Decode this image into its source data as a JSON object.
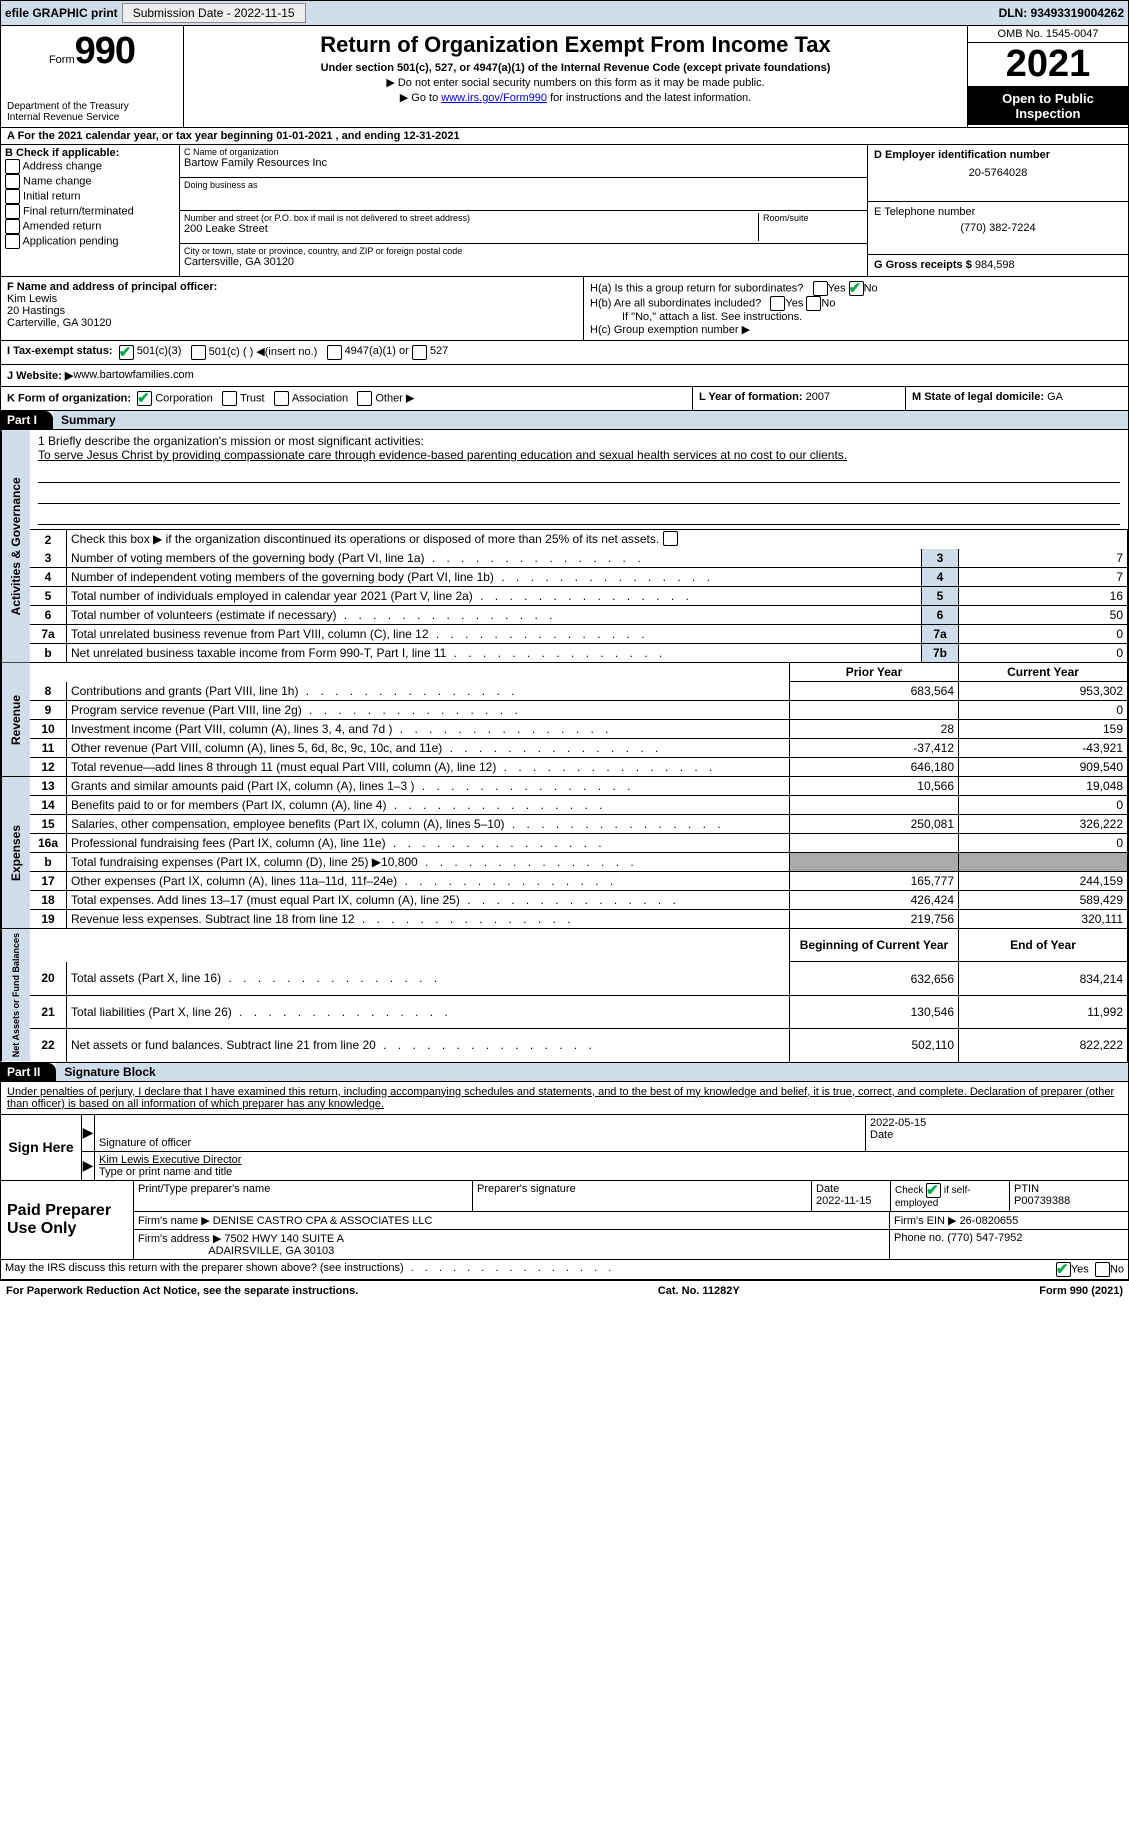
{
  "top": {
    "efile": "efile GRAPHIC print",
    "subdate_lbl": "Submission Date - 2022-11-15",
    "dln": "DLN: 93493319004262"
  },
  "hd": {
    "form_word": "Form",
    "form_num": "990",
    "title": "Return of Organization Exempt From Income Tax",
    "sub1": "Under section 501(c), 527, or 4947(a)(1) of the Internal Revenue Code (except private foundations)",
    "sub2": "▶ Do not enter social security numbers on this form as it may be made public.",
    "sub3_pre": "▶ Go to ",
    "sub3_link": "www.irs.gov/Form990",
    "sub3_post": " for instructions and the latest information.",
    "dept1": "Department of the Treasury",
    "dept2": "Internal Revenue Service",
    "omb": "OMB No. 1545-0047",
    "year": "2021",
    "open": "Open to Public Inspection"
  },
  "a": {
    "text": "A  For the 2021 calendar year, or tax year beginning 01-01-2021    , and ending 12-31-2021"
  },
  "b": {
    "hdr": "B Check if applicable:",
    "items": [
      "Address change",
      "Name change",
      "Initial return",
      "Final return/terminated",
      "Amended return",
      "Application pending"
    ]
  },
  "c": {
    "name_lbl": "C Name of organization",
    "name": "Bartow Family Resources Inc",
    "dba_lbl": "Doing business as",
    "street_lbl": "Number and street (or P.O. box if mail is not delivered to street address)",
    "room_lbl": "Room/suite",
    "street": "200 Leake Street",
    "city_lbl": "City or town, state or province, country, and ZIP or foreign postal code",
    "city": "Cartersville, GA  30120"
  },
  "d": {
    "lbl": "D Employer identification number",
    "val": "20-5764028"
  },
  "e": {
    "lbl": "E Telephone number",
    "val": "(770) 382-7224"
  },
  "g": {
    "lbl": "G Gross receipts $",
    "val": "984,598"
  },
  "f": {
    "lbl": "F  Name and address of principal officer:",
    "name": "Kim Lewis",
    "l2": "20 Hastings",
    "l3": "Carterville, GA  30120"
  },
  "h": {
    "a": "H(a)  Is this a group return for subordinates?",
    "a_yes": "Yes",
    "a_no": "No",
    "b": "H(b)  Are all subordinates included?",
    "b_yes": "Yes",
    "b_no": "No",
    "b_note": "If \"No,\" attach a list. See instructions.",
    "c": "H(c)  Group exemption number ▶"
  },
  "i": {
    "lbl": "I   Tax-exempt status:",
    "o1": "501(c)(3)",
    "o2": "501(c) (   ) ◀(insert no.)",
    "o3": "4947(a)(1) or",
    "o4": "527"
  },
  "j": {
    "lbl": "J   Website: ▶",
    "val": " www.bartowfamilies.com"
  },
  "k": {
    "lbl": "K Form of organization:",
    "o1": "Corporation",
    "o2": "Trust",
    "o3": "Association",
    "o4": "Other ▶"
  },
  "l": {
    "lbl": "L Year of formation:",
    "val": "2007"
  },
  "m": {
    "lbl": "M State of legal domicile:",
    "val": "GA"
  },
  "p1": {
    "part": "Part I",
    "title": "Summary"
  },
  "mission": {
    "pre": "1   Briefly describe the organization's mission or most significant activities:",
    "text": "To serve Jesus Christ by providing compassionate care through evidence-based parenting education and sexual health services at no cost to our clients."
  },
  "l2": "Check this box ▶       if the organization discontinued its operations or disposed of more than 25% of its net assets.",
  "sect": {
    "act": "Activities & Governance",
    "rev": "Revenue",
    "exp": "Expenses",
    "net": "Net Assets or Fund Balances"
  },
  "hdr2": {
    "py": "Prior Year",
    "cy": "Current Year",
    "bcy": "Beginning of Current Year",
    "ey": "End of Year"
  },
  "rows_act": [
    {
      "n": "3",
      "d": "Number of voting members of the governing body (Part VI, line 1a)",
      "lbl": "3",
      "v": "7"
    },
    {
      "n": "4",
      "d": "Number of independent voting members of the governing body (Part VI, line 1b)",
      "lbl": "4",
      "v": "7"
    },
    {
      "n": "5",
      "d": "Total number of individuals employed in calendar year 2021 (Part V, line 2a)",
      "lbl": "5",
      "v": "16"
    },
    {
      "n": "6",
      "d": "Total number of volunteers (estimate if necessary)",
      "lbl": "6",
      "v": "50"
    },
    {
      "n": "7a",
      "d": "Total unrelated business revenue from Part VIII, column (C), line 12",
      "lbl": "7a",
      "v": "0"
    },
    {
      "n": "b",
      "d": "Net unrelated business taxable income from Form 990-T, Part I, line 11",
      "lbl": "7b",
      "v": "0"
    }
  ],
  "rows_rev": [
    {
      "n": "8",
      "d": "Contributions and grants (Part VIII, line 1h)",
      "py": "683,564",
      "cy": "953,302"
    },
    {
      "n": "9",
      "d": "Program service revenue (Part VIII, line 2g)",
      "py": "",
      "cy": "0"
    },
    {
      "n": "10",
      "d": "Investment income (Part VIII, column (A), lines 3, 4, and 7d )",
      "py": "28",
      "cy": "159"
    },
    {
      "n": "11",
      "d": "Other revenue (Part VIII, column (A), lines 5, 6d, 8c, 9c, 10c, and 11e)",
      "py": "-37,412",
      "cy": "-43,921"
    },
    {
      "n": "12",
      "d": "Total revenue—add lines 8 through 11 (must equal Part VIII, column (A), line 12)",
      "py": "646,180",
      "cy": "909,540"
    }
  ],
  "rows_exp": [
    {
      "n": "13",
      "d": "Grants and similar amounts paid (Part IX, column (A), lines 1–3 )",
      "py": "10,566",
      "cy": "19,048"
    },
    {
      "n": "14",
      "d": "Benefits paid to or for members (Part IX, column (A), line 4)",
      "py": "",
      "cy": "0"
    },
    {
      "n": "15",
      "d": "Salaries, other compensation, employee benefits (Part IX, column (A), lines 5–10)",
      "py": "250,081",
      "cy": "326,222"
    },
    {
      "n": "16a",
      "d": "Professional fundraising fees (Part IX, column (A), line 11e)",
      "py": "",
      "cy": "0"
    },
    {
      "n": "b",
      "d": "Total fundraising expenses (Part IX, column (D), line 25) ▶10,800",
      "py": "grey",
      "cy": "grey"
    },
    {
      "n": "17",
      "d": "Other expenses (Part IX, column (A), lines 11a–11d, 11f–24e)",
      "py": "165,777",
      "cy": "244,159"
    },
    {
      "n": "18",
      "d": "Total expenses. Add lines 13–17 (must equal Part IX, column (A), line 25)",
      "py": "426,424",
      "cy": "589,429"
    },
    {
      "n": "19",
      "d": "Revenue less expenses. Subtract line 18 from line 12",
      "py": "219,756",
      "cy": "320,111"
    }
  ],
  "rows_net": [
    {
      "n": "20",
      "d": "Total assets (Part X, line 16)",
      "py": "632,656",
      "cy": "834,214"
    },
    {
      "n": "21",
      "d": "Total liabilities (Part X, line 26)",
      "py": "130,546",
      "cy": "11,992"
    },
    {
      "n": "22",
      "d": "Net assets or fund balances. Subtract line 21 from line 20",
      "py": "502,110",
      "cy": "822,222"
    }
  ],
  "p2": {
    "part": "Part II",
    "title": "Signature Block"
  },
  "sig": {
    "decl": "Under penalties of perjury, I declare that I have examined this return, including accompanying schedules and statements, and to the best of my knowledge and belief, it is true, correct, and complete. Declaration of preparer (other than officer) is based on all information of which preparer has any knowledge.",
    "sign_here": "Sign Here",
    "sig_of": "Signature of officer",
    "date_lbl": "Date",
    "date": "2022-05-15",
    "typed": "Kim Lewis  Executive Director",
    "typed_lbl": "Type or print name and title"
  },
  "prep": {
    "side": "Paid Preparer Use Only",
    "h1": "Print/Type preparer's name",
    "h2": "Preparer's signature",
    "h3": "Date",
    "d3": "2022-11-15",
    "h4": "Check        if self-employed",
    "h5": "PTIN",
    "ptin": "P00739388",
    "firm_lbl": "Firm's name    ▶",
    "firm": "DENISE CASTRO CPA & ASSOCIATES LLC",
    "ein_lbl": "Firm's EIN ▶",
    "ein": "26-0820655",
    "addr_lbl": "Firm's address ▶",
    "addr1": "7502 HWY 140 SUITE A",
    "addr2": "ADAIRSVILLE, GA  30103",
    "phone_lbl": "Phone no.",
    "phone": "(770) 547-7952"
  },
  "irs_q": "May the IRS discuss this return with the preparer shown above? (see instructions)",
  "yes": "Yes",
  "no": "No",
  "ft": {
    "l": "For Paperwork Reduction Act Notice, see the separate instructions.",
    "c": "Cat. No. 11282Y",
    "r": "Form 990 (2021)"
  }
}
